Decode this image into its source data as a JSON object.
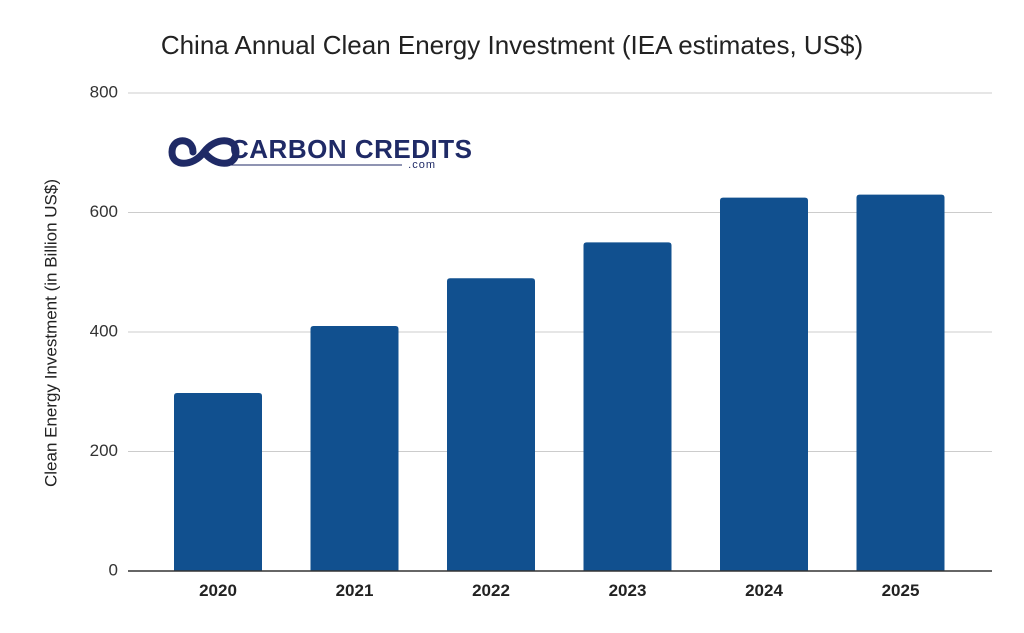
{
  "chart_data": {
    "type": "bar",
    "title": "China Annual Clean Energy Investment (IEA estimates, US$)",
    "xlabel": "",
    "ylabel": "Clean Energy Investment (in Billion US$)",
    "categories": [
      "2020",
      "2021",
      "2022",
      "2023",
      "2024",
      "2025"
    ],
    "values": [
      298,
      410,
      490,
      550,
      625,
      630
    ],
    "ylim": [
      0,
      800
    ],
    "yticks": [
      0,
      200,
      400,
      600,
      800
    ],
    "grid": true,
    "bar_color": "#11508f"
  },
  "logo": {
    "name": "CARBON CREDITS",
    "domain": ".com",
    "color": "#1f2a66"
  }
}
